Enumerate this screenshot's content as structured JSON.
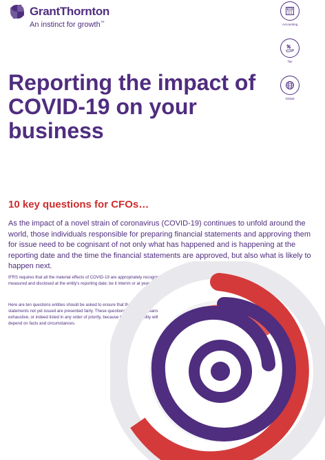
{
  "logo": {
    "name": "GrantThornton",
    "tagline": "An instinct for growth",
    "trademark": "™"
  },
  "side_icons": [
    {
      "icon": "calculator-icon",
      "label": "Accounting"
    },
    {
      "icon": "percent-tax-icon",
      "label": "Tax"
    },
    {
      "icon": "globe-icon",
      "label": "Global"
    }
  ],
  "title": "Reporting the impact of COVID-19 on your business",
  "subtitle": "10 key questions for CFOs…",
  "lead": "As the impact of a novel strain of coronavirus (COVID-19) continues to unfold around the world, those individuals responsible for preparing financial statements and approving them for issue need to be cognisant of not only what has happened and is happening at the reporting date and the time the financial statements are approved, but also what is likely to happen next.",
  "body": [
    "IFRS requires that all the material effects of COVID-19 are appropriately recognised, measured and disclosed at the entity's reporting date; be it interim or at year-end.",
    "Here are ten questions entities should be asked to ensure that those financial statements not yet issued are presented fairly. These questions are by no means exhaustive, or indeed listed in any order of priority, because their applicability will depend on facts and circumstances."
  ],
  "colors": {
    "purple": "#4f2d7f",
    "red": "#ce2c2c",
    "grey": "#e8e8ec"
  }
}
